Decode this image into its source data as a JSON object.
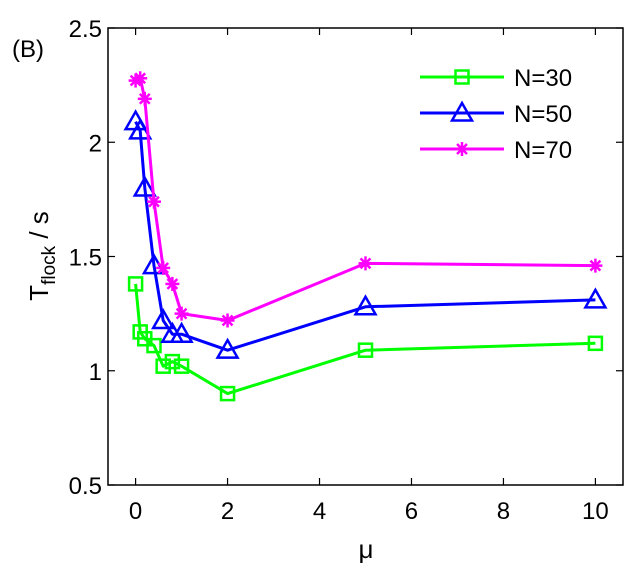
{
  "panel_label": "(B)",
  "chart_data": {
    "type": "line",
    "xlabel": "μ",
    "ylabel_main": "T",
    "ylabel_sub": "flock",
    "ylabel_suffix": " / s",
    "xlim": [
      -0.6,
      10.6
    ],
    "ylim": [
      0.5,
      2.5
    ],
    "xticks": [
      0,
      2,
      4,
      6,
      8,
      10
    ],
    "yticks": [
      0.5,
      1,
      1.5,
      2,
      2.5
    ],
    "xtick_labels": [
      "0",
      "2",
      "4",
      "6",
      "8",
      "10"
    ],
    "ytick_labels": [
      "0.5",
      "1",
      "1.5",
      "2",
      "2.5"
    ],
    "legend_position": "top-right",
    "grid": false,
    "series": [
      {
        "name": "N=30",
        "color": "#00ff00",
        "marker": "square",
        "x": [
          0,
          0.1,
          0.2,
          0.4,
          0.6,
          0.8,
          1,
          2,
          5,
          10
        ],
        "y": [
          1.38,
          1.17,
          1.14,
          1.11,
          1.02,
          1.04,
          1.02,
          0.9,
          1.09,
          1.12
        ]
      },
      {
        "name": "N=50",
        "color": "#0000ff",
        "marker": "triangle",
        "x": [
          0,
          0.1,
          0.2,
          0.4,
          0.6,
          0.8,
          1,
          2,
          5,
          10
        ],
        "y": [
          2.09,
          2.05,
          1.8,
          1.46,
          1.22,
          1.16,
          1.16,
          1.09,
          1.28,
          1.31
        ]
      },
      {
        "name": "N=70",
        "color": "#ff00ff",
        "marker": "asterisk",
        "x": [
          0,
          0.1,
          0.2,
          0.4,
          0.6,
          0.8,
          1,
          2,
          5,
          10
        ],
        "y": [
          2.27,
          2.28,
          2.19,
          1.74,
          1.45,
          1.38,
          1.25,
          1.22,
          1.47,
          1.46
        ]
      }
    ]
  }
}
